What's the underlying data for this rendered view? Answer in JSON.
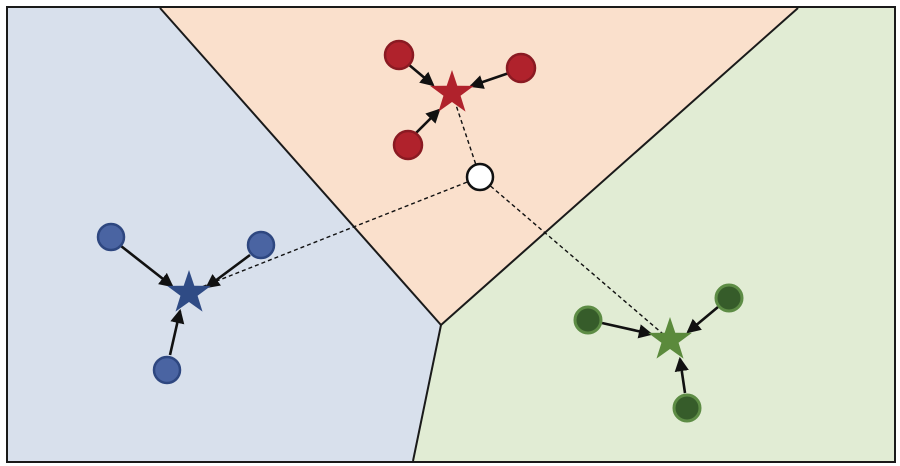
{
  "colors": {
    "background": "#ffffff",
    "border": "#1a1a1a",
    "region_blue": "#d8e0ec",
    "region_red": "#fae0cc",
    "region_green": "#e1ecd4",
    "blue": "#4a64a2",
    "blue_stroke": "#2e4780",
    "blue_star": "#2f4b85",
    "red": "#b0222c",
    "red_stroke": "#8a1a22",
    "red_star": "#b0222c",
    "green": "#365c2a",
    "green_stroke": "#5d8c45",
    "green_star": "#5b8a3c",
    "arrow": "#111111",
    "query_fill": "#ffffff",
    "query_stroke": "#111111"
  },
  "clusters": [
    {
      "name": "blue-cluster",
      "color_key": "blue"
    },
    {
      "name": "red-cluster",
      "color_key": "red"
    },
    {
      "name": "green-cluster",
      "color_key": "green"
    }
  ]
}
